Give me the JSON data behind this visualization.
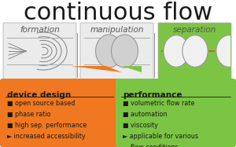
{
  "title": "continuous flow",
  "title_fontsize": 22,
  "title_color": "#1a1a1a",
  "bg_color": "#ffffff",
  "section_labels": [
    "formation",
    "manipulation",
    "separation"
  ],
  "section_label_fontsize": 7.5,
  "section_label_color": "#555555",
  "orange_color": "#f07820",
  "green_color": "#7cc444",
  "channel_bg": "#ebebeb",
  "channel_edge": "#aaaaaa",
  "droplet_fill": "#d0d0d0",
  "droplet_edge": "#999999",
  "dashed_color": "#d05820",
  "arc_color": "#888888",
  "divider_color": "#999999",
  "od_title": "device design",
  "od_title_fs": 7.5,
  "od_bullets": [
    "■ open source based",
    "■ phase ratio",
    "■ high sep. performance",
    "► increased accessibility"
  ],
  "od_bullet_fs": 5.8,
  "gd_title": "performance",
  "gd_title_fs": 7.5,
  "gd_bullets": [
    "■ volumetric flow rate",
    "■ automation",
    "■ viscosity",
    "► applicable for various",
    "    flow conditions"
  ],
  "gd_bullet_fs": 5.8,
  "text_color": "#1a1a1a"
}
